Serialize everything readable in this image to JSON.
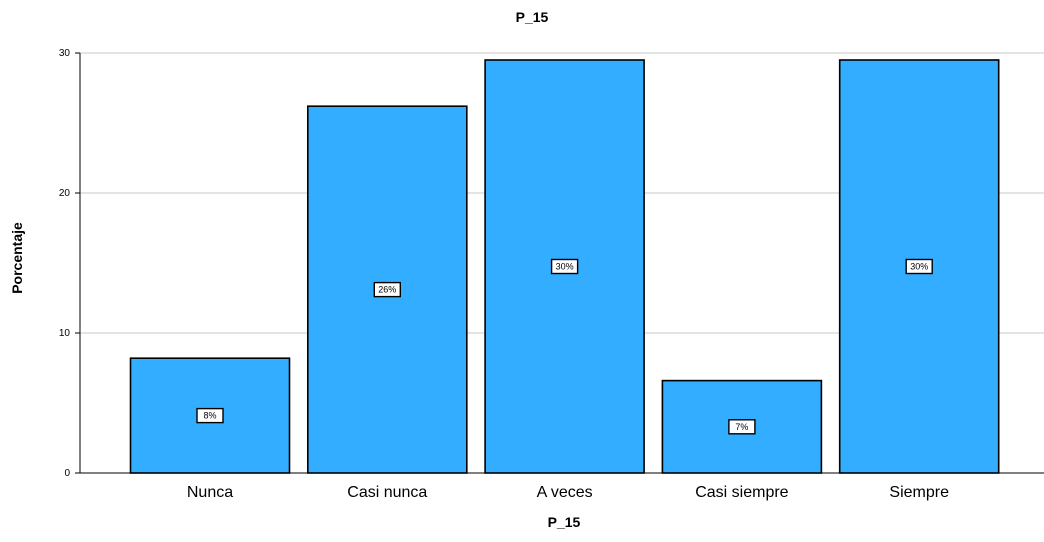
{
  "chart_data": {
    "type": "bar",
    "title": "P_15",
    "xlabel": "P_15",
    "ylabel": "Porcentaje",
    "categories": [
      "Nunca",
      "Casi nunca",
      "A veces",
      "Casi siempre",
      "Siempre"
    ],
    "values": [
      8.2,
      26.2,
      29.5,
      6.6,
      29.5
    ],
    "data_labels": [
      "8%",
      "26%",
      "30%",
      "7%",
      "30%"
    ],
    "ylim": [
      0,
      30
    ],
    "yticks": [
      0,
      10,
      20,
      30
    ],
    "ytick_labels": [
      "0",
      "10",
      "20",
      "30"
    ],
    "grid": true,
    "bar_color": "#33adff",
    "bar_edge_color": "#000000",
    "grid_color": "#c8c8c8"
  }
}
